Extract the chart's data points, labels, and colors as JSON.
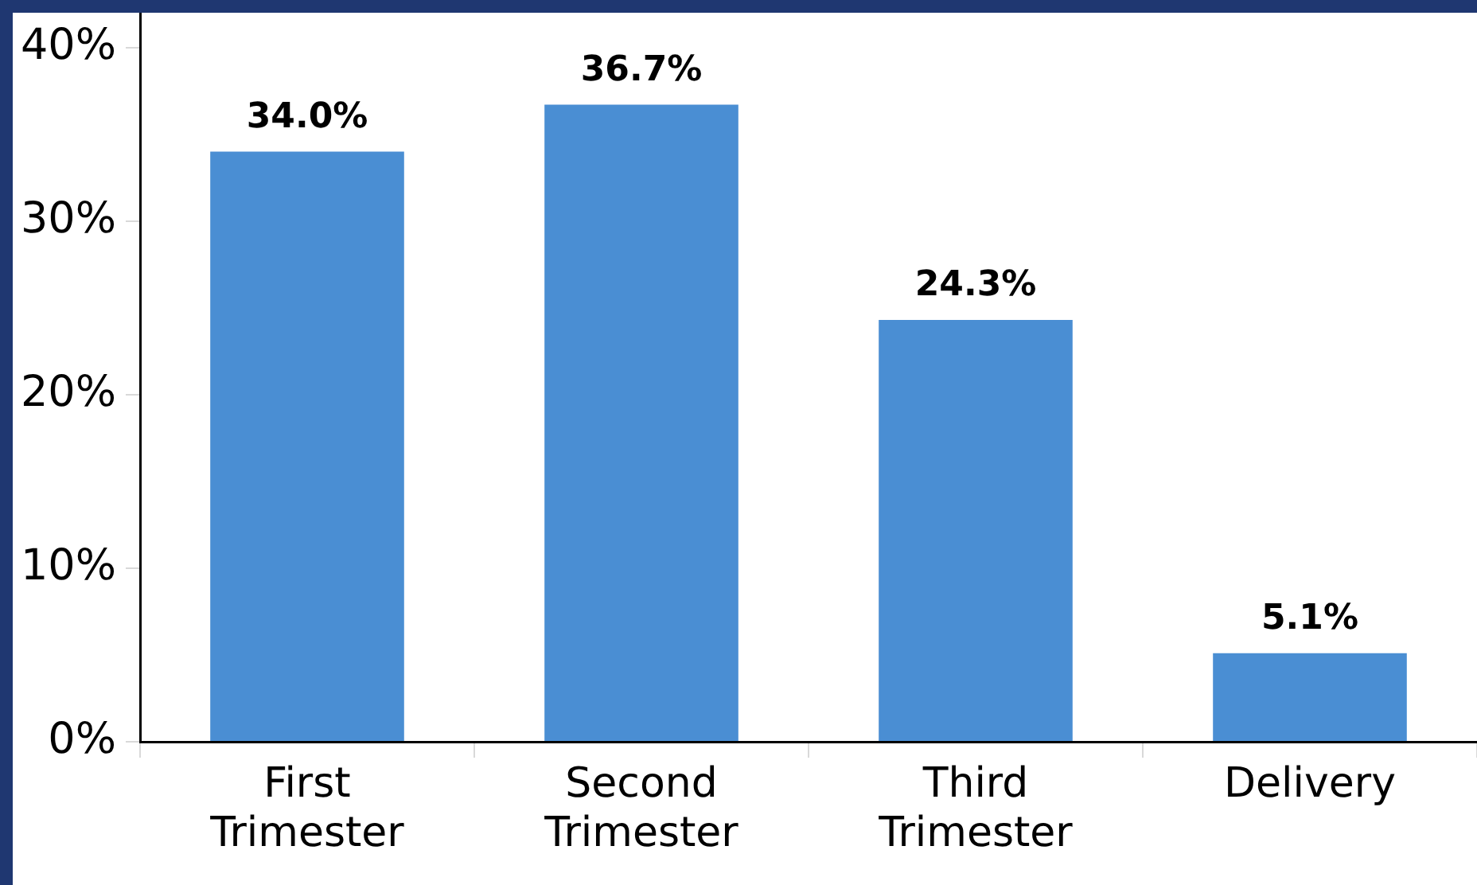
{
  "chart_data": {
    "type": "bar",
    "categories": [
      "First Trimester",
      "Second Trimester",
      "Third Trimester",
      "Delivery"
    ],
    "values": [
      34.0,
      36.7,
      24.3,
      5.1
    ],
    "color": "#4a8ed3",
    "value_labels": [
      "34.0%",
      "36.7%",
      "24.3%",
      "5.1%"
    ],
    "ylim": [
      0,
      42
    ],
    "yticks": [
      {
        "value": 0,
        "label": "0%"
      },
      {
        "value": 10,
        "label": "10%"
      },
      {
        "value": 20,
        "label": "20%"
      },
      {
        "value": 30,
        "label": "30%"
      },
      {
        "value": 40,
        "label": "40%"
      }
    ]
  }
}
